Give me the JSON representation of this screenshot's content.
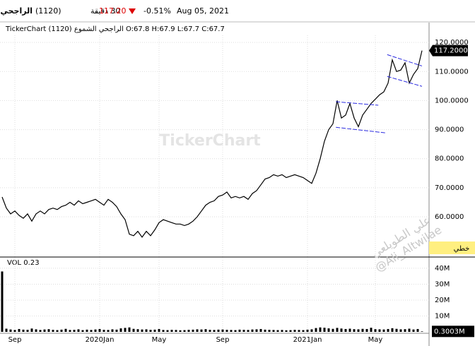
{
  "header": {
    "name": "الراجحي",
    "code": "(1120)",
    "interval": "30 دقيقة",
    "price": "117.20",
    "change": "-0.51%",
    "date": "Aug 05, 2021"
  },
  "chart_data": {
    "type": "line",
    "title": "TickerChart الراجحي الشموع (1120) O:67.8 H:67.9 L:67.7 C:67.7",
    "watermark": "TickerChart",
    "signature": [
      "علي الطويلعي",
      "@Ali_Altwilae"
    ],
    "style_button": "خطي",
    "color": "#000000",
    "categories": [
      null,
      null,
      null,
      "Sep",
      null,
      null,
      null,
      null,
      null,
      null,
      null,
      null,
      null,
      null,
      null,
      null,
      null,
      null,
      null,
      null,
      null,
      null,
      null,
      "2020Jan",
      null,
      null,
      null,
      null,
      null,
      null,
      null,
      null,
      null,
      null,
      null,
      null,
      null,
      "May",
      null,
      null,
      null,
      null,
      null,
      null,
      null,
      null,
      null,
      null,
      null,
      null,
      null,
      null,
      "Sep",
      null,
      null,
      null,
      null,
      null,
      null,
      null,
      null,
      null,
      null,
      null,
      null,
      null,
      null,
      null,
      null,
      null,
      null,
      null,
      "2021Jan",
      null,
      null,
      null,
      null,
      null,
      null,
      null,
      null,
      null,
      null,
      null,
      null,
      null,
      null,
      null,
      "May",
      null,
      null,
      null,
      null,
      null,
      null,
      null,
      null,
      null,
      null,
      null
    ],
    "values": [
      66.8,
      63,
      61,
      62,
      60.5,
      59.5,
      61,
      58.5,
      61,
      62,
      61,
      62.5,
      63,
      62.5,
      63.5,
      64,
      65,
      64,
      65.5,
      64.5,
      65,
      65.5,
      66,
      65,
      64,
      66,
      65,
      63.5,
      61,
      59,
      54,
      53.5,
      55,
      53,
      55,
      53.5,
      55.5,
      58,
      59,
      58.5,
      58,
      57.5,
      57.5,
      57,
      57.5,
      58.5,
      60,
      62,
      64,
      65,
      65.5,
      67,
      67.5,
      68.5,
      66.5,
      67,
      66.5,
      67,
      66,
      68,
      69,
      71,
      73,
      73.5,
      74.5,
      74,
      74.5,
      73.5,
      74,
      74.5,
      74,
      73.5,
      72.5,
      71.5,
      75,
      80,
      86,
      90,
      92,
      100,
      94,
      95,
      99,
      94,
      91,
      95,
      97,
      99,
      100.5,
      102,
      103,
      106,
      114,
      110,
      110.5,
      113,
      106,
      109,
      111,
      117.2
    ],
    "ylim": [
      46.4,
      126.1
    ],
    "yticks": [
      {
        "value": 60,
        "label": "60.0000"
      },
      {
        "value": 70,
        "label": "70.0000"
      },
      {
        "value": 80,
        "label": "80.0000"
      },
      {
        "value": 90,
        "label": "90.0000"
      },
      {
        "value": 100,
        "label": "100.0000"
      },
      {
        "value": 110,
        "label": "110.0000"
      },
      {
        "value": 120,
        "label": "120.0000"
      }
    ],
    "last_value": {
      "value": 117.2,
      "label": "117.2000"
    },
    "grid": true,
    "trendline_color": "#2a2ae0",
    "trendlines": [
      {
        "x": [
          78.7,
          88.7
        ],
        "y": [
          99.6,
          98.4
        ]
      },
      {
        "x": [
          78.7,
          90.3
        ],
        "y": [
          90.8,
          88.9
        ]
      },
      {
        "x": [
          90.8,
          99
        ],
        "y": [
          115.8,
          111.9
        ]
      },
      {
        "x": [
          90.8,
          99
        ],
        "y": [
          108.3,
          104.9
        ]
      }
    ],
    "volume": {
      "type": "bar",
      "label": "VOL  0.23",
      "color": "#000000",
      "values": [
        38,
        2,
        1.5,
        1.2,
        1.8,
        1.4,
        1.3,
        2.1,
        1.6,
        1.2,
        1.5,
        1.7,
        1.3,
        1.1,
        1.4,
        1.9,
        1.2,
        1.3,
        1.6,
        1.1,
        1.4,
        1.2,
        1.5,
        1.8,
        1.3,
        1.2,
        1.6,
        1.4,
        2.2,
        2.5,
        2.8,
        1.9,
        1.7,
        1.5,
        1.6,
        1.3,
        1.4,
        1.8,
        1.2,
        1.1,
        1.3,
        1.2,
        1.0,
        1.1,
        1.3,
        1.4,
        1.6,
        1.5,
        1.7,
        1.3,
        1.2,
        1.4,
        1.5,
        1.3,
        1.2,
        1.1,
        1.4,
        1.3,
        1.2,
        1.5,
        1.6,
        1.8,
        1.4,
        1.3,
        1.2,
        1.1,
        1.2,
        1.0,
        1.1,
        1.3,
        1.2,
        1.1,
        1.4,
        1.6,
        2.4,
        2.8,
        2.6,
        2.2,
        1.9,
        2.5,
        2.1,
        1.8,
        2.0,
        1.7,
        1.6,
        1.9,
        1.8,
        2.6,
        1.7,
        1.6,
        1.5,
        1.8,
        2.3,
        1.9,
        1.6,
        1.7,
        2.0,
        1.5,
        1.8,
        0.3003
      ],
      "ylim": [
        0,
        45.3
      ],
      "yticks": [
        {
          "value": 10,
          "label": "10M"
        },
        {
          "value": 20,
          "label": "20M"
        },
        {
          "value": 30,
          "label": "30M"
        },
        {
          "value": 40,
          "label": "40M"
        }
      ],
      "last_value": {
        "value": 0.3003,
        "label": "0.3003M"
      }
    }
  }
}
